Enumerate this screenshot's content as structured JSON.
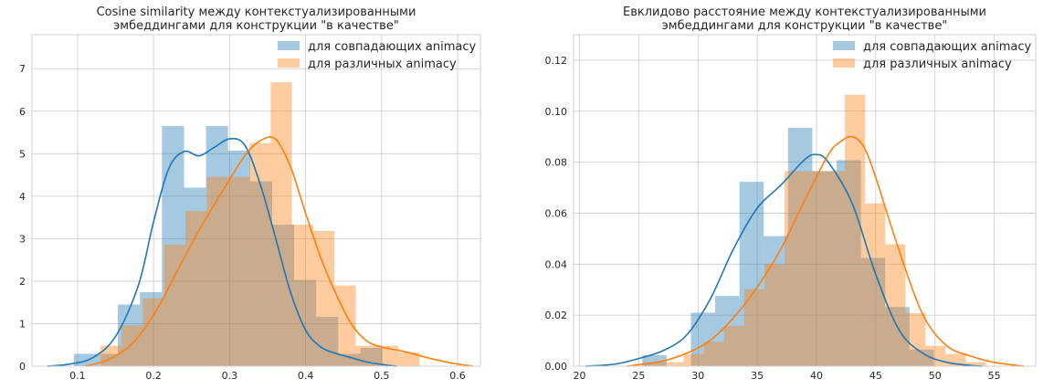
{
  "chart_data": [
    {
      "type": "histogram+kde",
      "title_lines": [
        "Cosine similarity между контекстуализированными",
        "эмбеддингами для конструкции \"в качестве\""
      ],
      "xlim": [
        0.04,
        0.63
      ],
      "ylim": [
        0,
        7.8
      ],
      "xticks": [
        0.1,
        0.2,
        0.3,
        0.4,
        0.5,
        0.6
      ],
      "xtick_labels": [
        "0.1",
        "0.2",
        "0.3",
        "0.4",
        "0.5",
        "0.6"
      ],
      "yticks": [
        0,
        1,
        2,
        3,
        4,
        5,
        6,
        7
      ],
      "ytick_labels": [
        "0",
        "1",
        "2",
        "3",
        "4",
        "5",
        "6",
        "7"
      ],
      "grid": true,
      "legend_position": "top-right",
      "series": [
        {
          "name": "для совпадающих animacy",
          "color": "#1f77b4",
          "bins": [
            {
              "x0": 0.095,
              "x1": 0.124,
              "h": 0.29
            },
            {
              "x0": 0.124,
              "x1": 0.153,
              "h": 0.29
            },
            {
              "x0": 0.153,
              "x1": 0.182,
              "h": 1.45
            },
            {
              "x0": 0.182,
              "x1": 0.211,
              "h": 1.74
            },
            {
              "x0": 0.211,
              "x1": 0.24,
              "h": 5.65
            },
            {
              "x0": 0.24,
              "x1": 0.269,
              "h": 4.2
            },
            {
              "x0": 0.269,
              "x1": 0.298,
              "h": 5.65
            },
            {
              "x0": 0.298,
              "x1": 0.327,
              "h": 5.07
            },
            {
              "x0": 0.327,
              "x1": 0.356,
              "h": 4.35
            },
            {
              "x0": 0.356,
              "x1": 0.385,
              "h": 3.33
            },
            {
              "x0": 0.385,
              "x1": 0.414,
              "h": 2.03
            },
            {
              "x0": 0.414,
              "x1": 0.443,
              "h": 1.16
            },
            {
              "x0": 0.443,
              "x1": 0.472,
              "h": 0.29
            },
            {
              "x0": 0.472,
              "x1": 0.501,
              "h": 0.43
            }
          ],
          "kde": {
            "x": [
              0.06,
              0.09,
              0.12,
              0.15,
              0.18,
              0.2,
              0.22,
              0.24,
              0.26,
              0.28,
              0.3,
              0.32,
              0.34,
              0.36,
              0.38,
              0.4,
              0.42,
              0.44,
              0.46,
              0.48,
              0.5,
              0.52
            ],
            "y": [
              0.0,
              0.05,
              0.2,
              0.7,
              1.9,
              3.4,
              4.65,
              5.05,
              4.95,
              5.15,
              5.35,
              5.2,
              4.3,
              3.05,
              1.75,
              0.85,
              0.45,
              0.3,
              0.2,
              0.1,
              0.04,
              0.0
            ]
          }
        },
        {
          "name": "для различных animacy",
          "color": "#ff7f0e",
          "bins": [
            {
              "x0": 0.13,
              "x1": 0.158,
              "h": 0.48
            },
            {
              "x0": 0.158,
              "x1": 0.186,
              "h": 0.96
            },
            {
              "x0": 0.186,
              "x1": 0.214,
              "h": 1.6
            },
            {
              "x0": 0.214,
              "x1": 0.242,
              "h": 2.86
            },
            {
              "x0": 0.242,
              "x1": 0.27,
              "h": 3.65
            },
            {
              "x0": 0.27,
              "x1": 0.298,
              "h": 4.45
            },
            {
              "x0": 0.298,
              "x1": 0.326,
              "h": 4.45
            },
            {
              "x0": 0.326,
              "x1": 0.354,
              "h": 5.25
            },
            {
              "x0": 0.354,
              "x1": 0.382,
              "h": 6.68
            },
            {
              "x0": 0.382,
              "x1": 0.41,
              "h": 3.33
            },
            {
              "x0": 0.41,
              "x1": 0.438,
              "h": 3.18
            },
            {
              "x0": 0.438,
              "x1": 0.466,
              "h": 1.9
            },
            {
              "x0": 0.466,
              "x1": 0.494,
              "h": 0.48
            },
            {
              "x0": 0.494,
              "x1": 0.522,
              "h": 0.48
            },
            {
              "x0": 0.522,
              "x1": 0.55,
              "h": 0.32
            }
          ],
          "kde": {
            "x": [
              0.11,
              0.14,
              0.17,
              0.2,
              0.23,
              0.26,
              0.29,
              0.32,
              0.34,
              0.36,
              0.38,
              0.4,
              0.42,
              0.44,
              0.46,
              0.48,
              0.5,
              0.52,
              0.54,
              0.56,
              0.59,
              0.62
            ],
            "y": [
              0.0,
              0.15,
              0.5,
              1.2,
              2.2,
              3.2,
              4.1,
              4.95,
              5.3,
              5.35,
              4.7,
              3.6,
              2.55,
              1.7,
              1.0,
              0.6,
              0.45,
              0.38,
              0.3,
              0.2,
              0.08,
              0.0
            ]
          }
        }
      ]
    },
    {
      "type": "histogram+kde",
      "title_lines": [
        "Евклидово расстояние между контекстуализированными",
        "эмбеддингами для конструкции \"в качестве\""
      ],
      "xlim": [
        19.5,
        58.5
      ],
      "ylim": [
        0,
        0.13
      ],
      "xticks": [
        20,
        25,
        30,
        35,
        40,
        45,
        50,
        55
      ],
      "xtick_labels": [
        "20",
        "25",
        "30",
        "35",
        "40",
        "45",
        "50",
        "55"
      ],
      "yticks": [
        0.0,
        0.02,
        0.04,
        0.06,
        0.08,
        0.1,
        0.12
      ],
      "ytick_labels": [
        "0.00",
        "0.02",
        "0.04",
        "0.06",
        "0.08",
        "0.10",
        "0.12"
      ],
      "grid": true,
      "legend_position": "top-right",
      "series": [
        {
          "name": "для совпадающих animacy",
          "color": "#1f77b4",
          "bins": [
            {
              "x0": 25.3,
              "x1": 27.35,
              "h": 0.0043
            },
            {
              "x0": 29.4,
              "x1": 31.45,
              "h": 0.021
            },
            {
              "x0": 31.45,
              "x1": 33.5,
              "h": 0.0275
            },
            {
              "x0": 33.5,
              "x1": 35.55,
              "h": 0.0723
            },
            {
              "x0": 35.55,
              "x1": 37.6,
              "h": 0.051
            },
            {
              "x0": 37.6,
              "x1": 39.65,
              "h": 0.0935
            },
            {
              "x0": 39.65,
              "x1": 41.7,
              "h": 0.0765
            },
            {
              "x0": 41.7,
              "x1": 43.75,
              "h": 0.0808
            },
            {
              "x0": 43.75,
              "x1": 45.8,
              "h": 0.0425
            },
            {
              "x0": 45.8,
              "x1": 47.85,
              "h": 0.0232
            },
            {
              "x0": 47.85,
              "x1": 49.9,
              "h": 0.0065
            }
          ],
          "kde": {
            "x": [
              20.5,
              23,
              25,
              27,
              29,
              31,
              33,
              35,
              37,
              39,
              40,
              41,
              43,
              45,
              47,
              49,
              51,
              53,
              54
            ],
            "y": [
              0.0,
              0.0008,
              0.003,
              0.006,
              0.012,
              0.026,
              0.046,
              0.062,
              0.071,
              0.081,
              0.083,
              0.08,
              0.064,
              0.036,
              0.014,
              0.005,
              0.0015,
              0.0003,
              0.0
            ]
          }
        },
        {
          "name": "для различных animacy",
          "color": "#ff7f0e",
          "bins": [
            {
              "x0": 25.4,
              "x1": 27.1,
              "h": 0.0016
            },
            {
              "x0": 27.1,
              "x1": 28.8,
              "h": 0.0016
            },
            {
              "x0": 28.8,
              "x1": 30.5,
              "h": 0.0048
            },
            {
              "x0": 30.5,
              "x1": 32.2,
              "h": 0.0096
            },
            {
              "x0": 32.2,
              "x1": 33.9,
              "h": 0.0158
            },
            {
              "x0": 33.9,
              "x1": 35.6,
              "h": 0.0302
            },
            {
              "x0": 35.6,
              "x1": 37.3,
              "h": 0.04
            },
            {
              "x0": 37.3,
              "x1": 39.0,
              "h": 0.0765
            },
            {
              "x0": 39.0,
              "x1": 40.7,
              "h": 0.0765
            },
            {
              "x0": 40.7,
              "x1": 42.4,
              "h": 0.0765
            },
            {
              "x0": 42.4,
              "x1": 44.1,
              "h": 0.1065
            },
            {
              "x0": 44.1,
              "x1": 45.8,
              "h": 0.0638
            },
            {
              "x0": 45.8,
              "x1": 47.5,
              "h": 0.0478
            },
            {
              "x0": 47.5,
              "x1": 49.2,
              "h": 0.0208
            },
            {
              "x0": 49.2,
              "x1": 50.9,
              "h": 0.008
            },
            {
              "x0": 50.9,
              "x1": 52.6,
              "h": 0.0048
            },
            {
              "x0": 52.6,
              "x1": 54.3,
              "h": 0.0016
            }
          ],
          "kde": {
            "x": [
              24,
              27,
              29,
              31,
              33,
              35,
              37,
              39,
              41,
              42,
              43,
              44,
              45,
              47,
              49,
              51,
              53,
              55,
              57.5
            ],
            "y": [
              0.0,
              0.002,
              0.005,
              0.01,
              0.019,
              0.031,
              0.046,
              0.065,
              0.083,
              0.088,
              0.09,
              0.086,
              0.074,
              0.045,
              0.02,
              0.008,
              0.004,
              0.0015,
              0.0
            ]
          }
        }
      ]
    }
  ]
}
